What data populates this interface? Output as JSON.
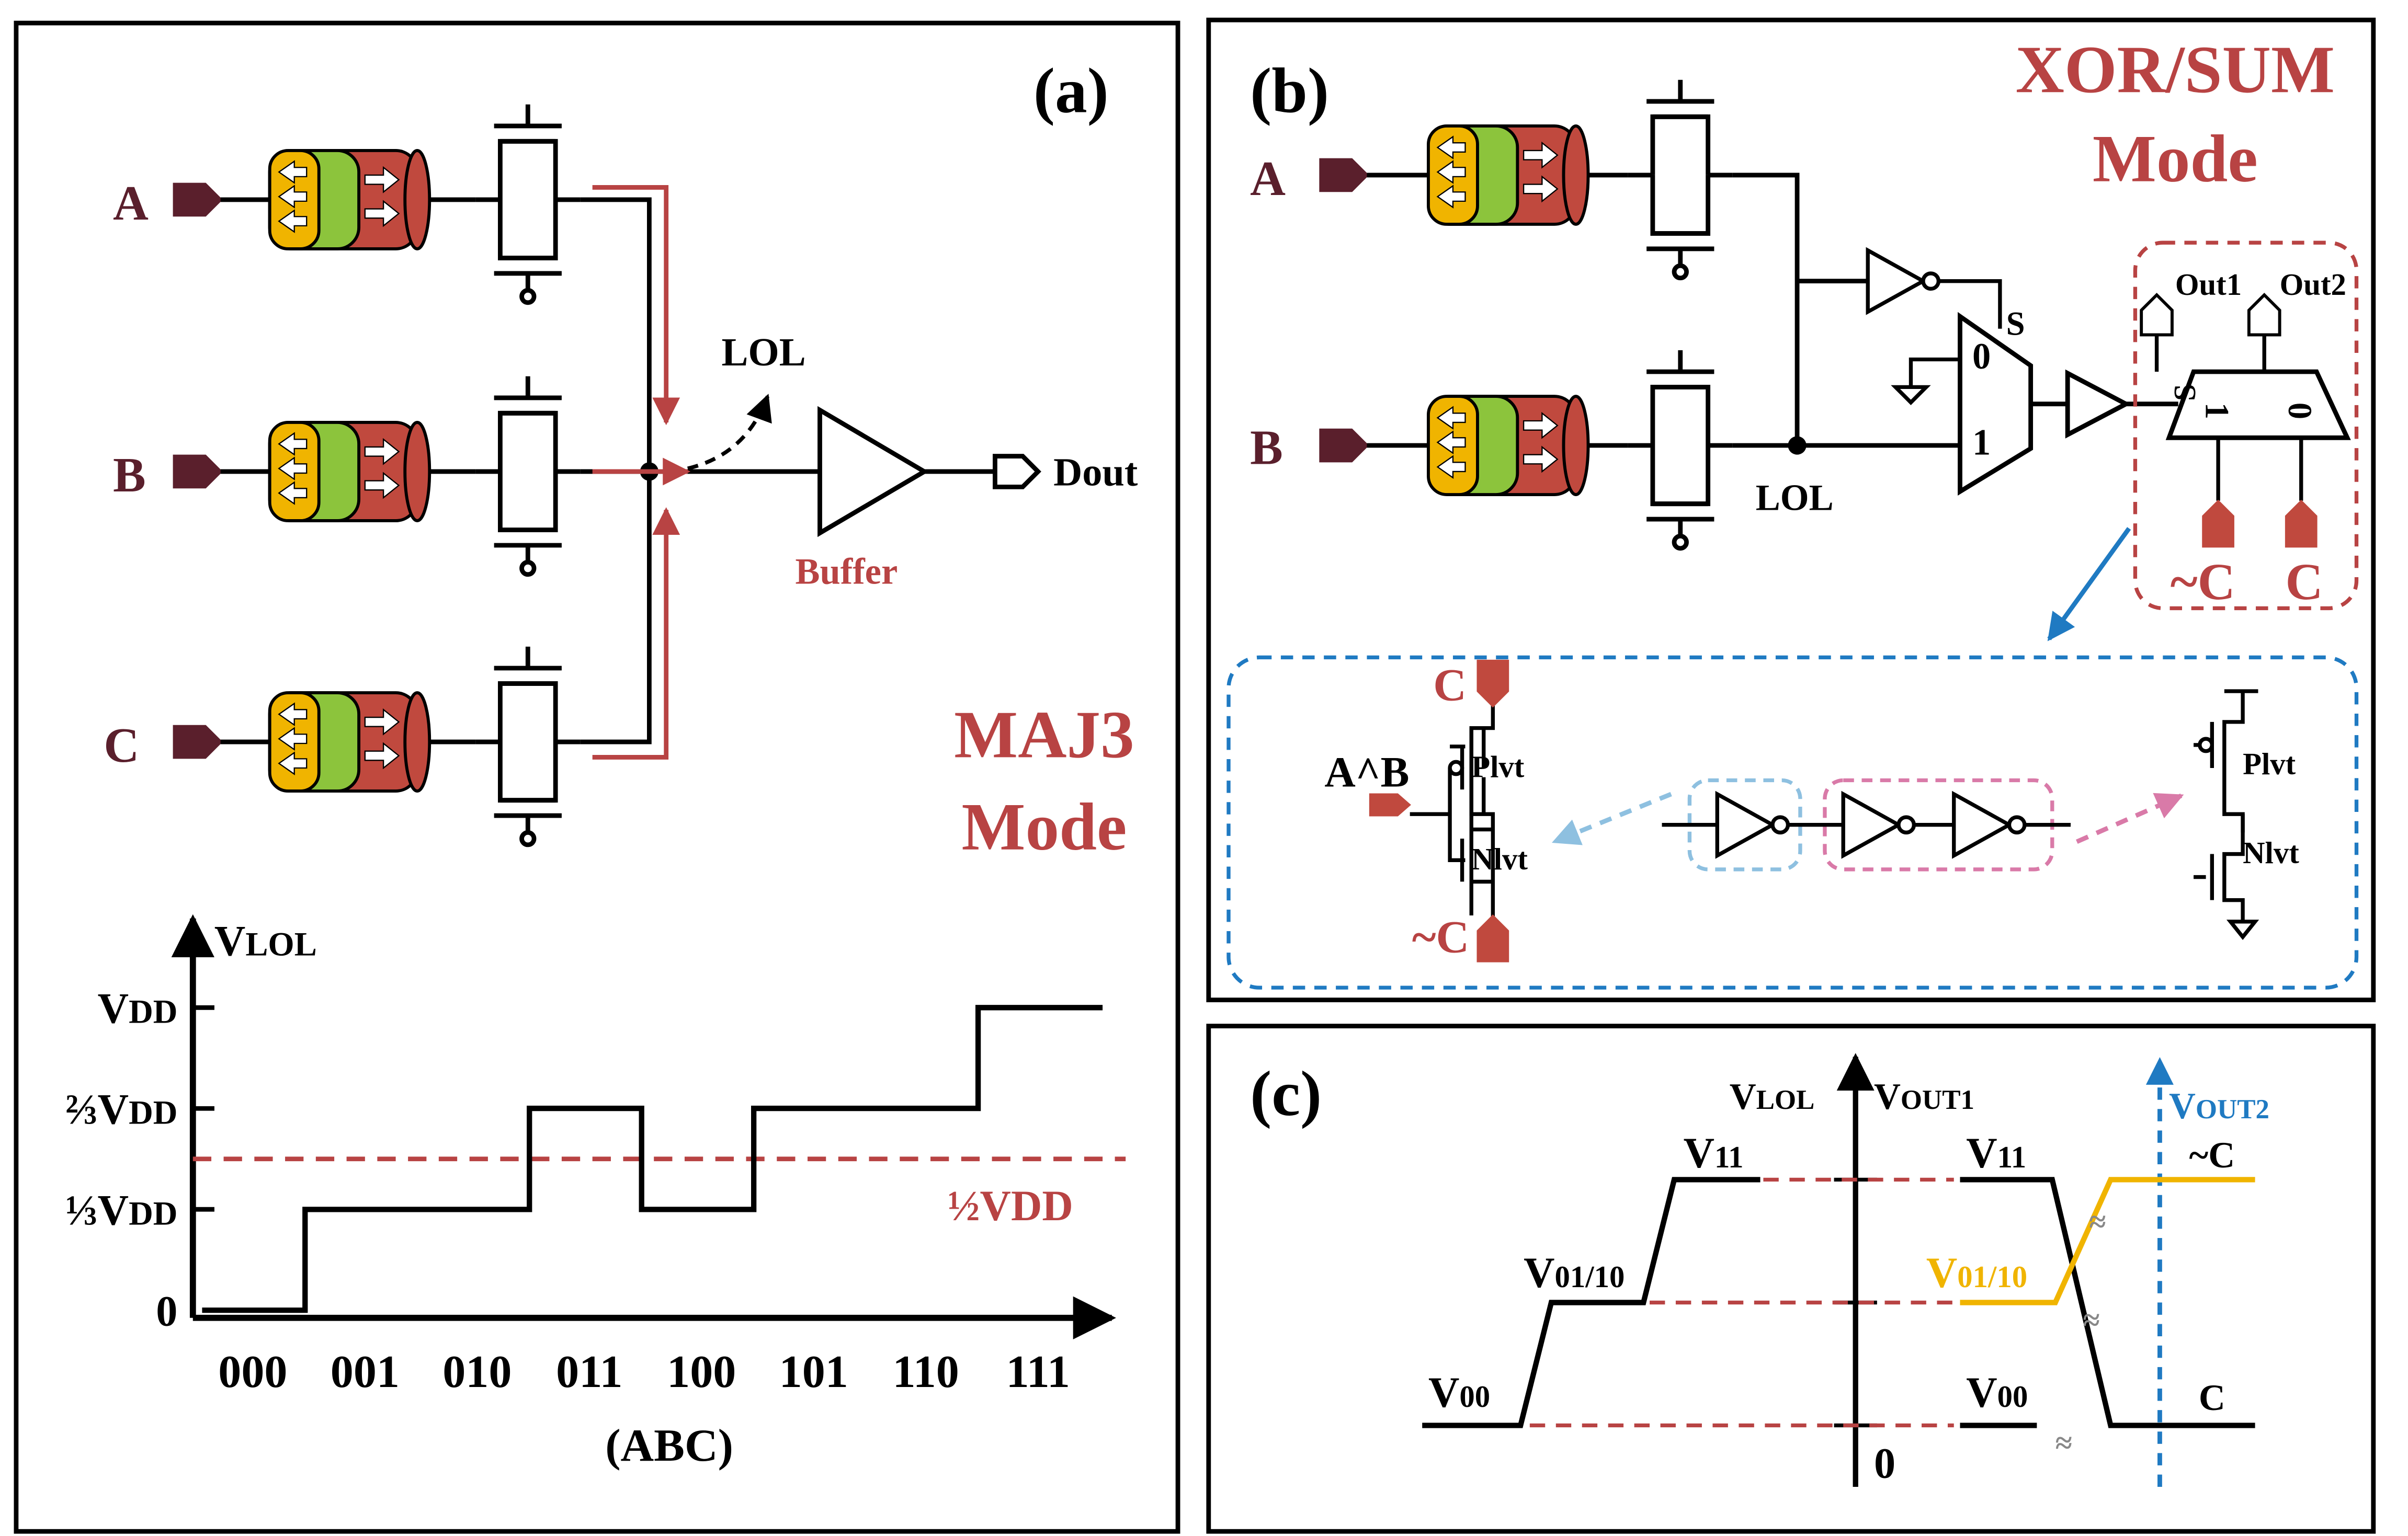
{
  "colors": {
    "accent_red": "#b84343",
    "dark_pin": "#5a1f2c",
    "blue": "#1f7ac2",
    "gold": "#f0b400",
    "light_blue_dash": "#8ec0e0",
    "pink_dash": "#d97aa8",
    "latch_yellow": "#f0b400",
    "latch_green": "#8cc43c",
    "latch_red": "#c0493e"
  },
  "panel_a": {
    "label": "(a)",
    "inputs": [
      "A",
      "B",
      "C"
    ],
    "lol_label": "LOL",
    "buffer_label": "Buffer",
    "output_label": "Dout",
    "mode_line1": "MAJ3",
    "mode_line2": "Mode",
    "graph": {
      "y_axis_label_main": "V",
      "y_axis_label_sub": "LOL",
      "y_ticks": [
        {
          "main": "V",
          "sub": "DD"
        },
        {
          "main": "⅔V",
          "sub": "DD"
        },
        {
          "main": "⅓V",
          "sub": "DD"
        },
        {
          "main": "0",
          "sub": ""
        }
      ],
      "threshold_label": "½VDD",
      "x_ticks": [
        "000",
        "001",
        "010",
        "011",
        "100",
        "101",
        "110",
        "111"
      ],
      "x_label": "(ABC)"
    }
  },
  "chart_data": {
    "type": "line",
    "x": [
      "000",
      "001",
      "010",
      "011",
      "100",
      "101",
      "110",
      "111"
    ],
    "series": [
      {
        "values": [
          0,
          0.333,
          0.333,
          0.667,
          0.333,
          0.667,
          0.667,
          1.0
        ]
      }
    ],
    "threshold": 0.5,
    "xlabel": "(ABC)",
    "ylabel": "VLOL",
    "ylim": [
      0,
      1
    ]
  },
  "panel_b": {
    "label": "(b)",
    "mode_line1": "XOR/SUM",
    "mode_line2": "Mode",
    "inputs": [
      "A",
      "B"
    ],
    "lol_label": "LOL",
    "mux_select": "S",
    "mux_in0": "0",
    "mux_in1": "1",
    "out1_label": "Out1",
    "out2_label": "Out2",
    "demux_select": "S",
    "demux_out1": "1",
    "demux_out0": "0",
    "pin_notc": "~C",
    "pin_c": "C",
    "detail": {
      "pin_c": "C",
      "input_label": "A^B",
      "pin_notc": "~C",
      "plvt": "Plvt",
      "nlvt": "Nlvt",
      "plvt2": "Plvt",
      "nlvt2": "Nlvt"
    }
  },
  "panel_c": {
    "label": "(c)",
    "left_axis_main": "V",
    "left_axis_sub": "LOL",
    "right_axis_main": "V",
    "right_axis_sub": "OUT1",
    "blue_axis_main": "V",
    "blue_axis_sub": "OUT2",
    "v11_main": "V",
    "v11_sub": "11",
    "v0110_main": "V",
    "v0110_sub": "01/10",
    "v00_main": "V",
    "v00_sub": "00",
    "r_v11_main": "V",
    "r_v11_sub": "11",
    "r_v0110_main": "V",
    "r_v0110_sub": "01/10",
    "r_v00_main": "V",
    "r_v00_sub": "00",
    "zero": "0",
    "notc": "~C",
    "c": "C"
  }
}
